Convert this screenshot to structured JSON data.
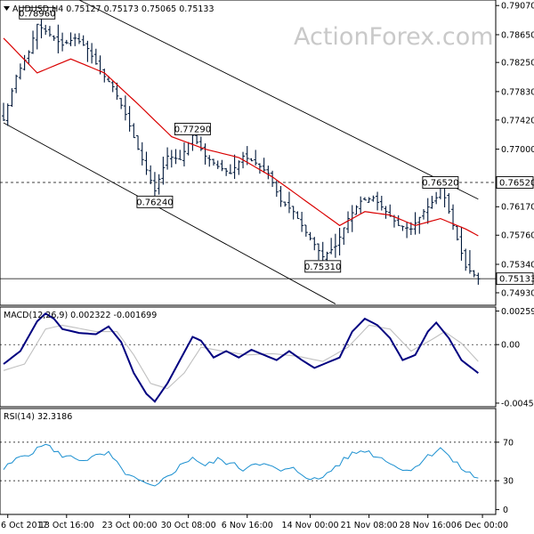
{
  "chart_data": {
    "type": "candlestick",
    "symbol_header": "AUDUSD,H4  0.75127 0.75173 0.75065 0.75133",
    "watermark": "ActionForex.com",
    "price_panel": {
      "ylim": [
        0.7475,
        0.7915
      ],
      "y_ticks": [
        "0.79070",
        "0.78650",
        "0.78250",
        "0.77830",
        "0.77420",
        "0.77000",
        "0.76170",
        "0.75760",
        "0.75340",
        "0.74930"
      ],
      "tagged_levels": [
        {
          "label": "0.76520",
          "value": 0.7652,
          "style": "dashed"
        },
        {
          "label": "0.75133",
          "value": 0.75133,
          "style": "solid"
        }
      ],
      "callouts": [
        {
          "label": "0.78960",
          "bar": 8,
          "value": 0.7896
        },
        {
          "label": "0.77290",
          "bar": 45,
          "value": 0.7729
        },
        {
          "label": "0.76240",
          "bar": 36,
          "value": 0.7624
        },
        {
          "label": "0.75310",
          "bar": 76,
          "value": 0.7531
        },
        {
          "label": "0.76520",
          "bar": 104,
          "value": 0.7652
        }
      ],
      "channel": [
        {
          "from": [
            0,
            0.7738
          ],
          "to": [
            79,
            0.7477
          ]
        },
        {
          "from": [
            18,
            0.7915
          ],
          "to": [
            113,
            0.7628
          ]
        }
      ],
      "ohlc_anchors": [
        [
          0,
          0.7742
        ],
        [
          3,
          0.7805
        ],
        [
          6,
          0.784
        ],
        [
          8,
          0.788
        ],
        [
          11,
          0.7865
        ],
        [
          14,
          0.785
        ],
        [
          17,
          0.786
        ],
        [
          20,
          0.7845
        ],
        [
          23,
          0.7812
        ],
        [
          26,
          0.779
        ],
        [
          29,
          0.775
        ],
        [
          32,
          0.77
        ],
        [
          36,
          0.764
        ],
        [
          39,
          0.769
        ],
        [
          42,
          0.7685
        ],
        [
          45,
          0.772
        ],
        [
          48,
          0.769
        ],
        [
          51,
          0.7675
        ],
        [
          54,
          0.7665
        ],
        [
          57,
          0.769
        ],
        [
          60,
          0.768
        ],
        [
          63,
          0.7665
        ],
        [
          66,
          0.7625
        ],
        [
          69,
          0.761
        ],
        [
          72,
          0.758
        ],
        [
          76,
          0.7545
        ],
        [
          79,
          0.756
        ],
        [
          82,
          0.76
        ],
        [
          85,
          0.7625
        ],
        [
          88,
          0.763
        ],
        [
          91,
          0.761
        ],
        [
          94,
          0.759
        ],
        [
          97,
          0.7585
        ],
        [
          100,
          0.761
        ],
        [
          103,
          0.763
        ],
        [
          104,
          0.765
        ],
        [
          106,
          0.761
        ],
        [
          108,
          0.757
        ],
        [
          110,
          0.753
        ],
        [
          113,
          0.7513
        ]
      ],
      "ma_anchors": [
        [
          0,
          0.786
        ],
        [
          8,
          0.781
        ],
        [
          16,
          0.783
        ],
        [
          24,
          0.781
        ],
        [
          32,
          0.7765
        ],
        [
          40,
          0.7718
        ],
        [
          48,
          0.77
        ],
        [
          56,
          0.7688
        ],
        [
          64,
          0.766
        ],
        [
          72,
          0.7625
        ],
        [
          80,
          0.759
        ],
        [
          86,
          0.761
        ],
        [
          92,
          0.7605
        ],
        [
          98,
          0.759
        ],
        [
          104,
          0.76
        ],
        [
          110,
          0.7585
        ],
        [
          113,
          0.7575
        ]
      ]
    },
    "macd_panel": {
      "label": "MACD(12,26,9) 0.002322 -0.001699",
      "ylim": [
        -0.0048,
        0.0029
      ],
      "y_ticks": [
        "0.002595",
        "0.00",
        "-0.004522"
      ],
      "zero": 0,
      "main_anchors": [
        [
          0,
          -0.0015
        ],
        [
          4,
          -0.0005
        ],
        [
          8,
          0.0018
        ],
        [
          10,
          0.0024
        ],
        [
          12,
          0.002
        ],
        [
          14,
          0.0012
        ],
        [
          18,
          0.0009
        ],
        [
          22,
          0.0008
        ],
        [
          25,
          0.0014
        ],
        [
          28,
          0.0002
        ],
        [
          31,
          -0.0022
        ],
        [
          34,
          -0.0038
        ],
        [
          36,
          -0.0044
        ],
        [
          39,
          -0.003
        ],
        [
          42,
          -0.0012
        ],
        [
          45,
          0.0006
        ],
        [
          47,
          0.0003
        ],
        [
          50,
          -0.001
        ],
        [
          53,
          -0.0005
        ],
        [
          56,
          -0.001
        ],
        [
          59,
          -0.0004
        ],
        [
          62,
          -0.0008
        ],
        [
          65,
          -0.0012
        ],
        [
          68,
          -0.0005
        ],
        [
          71,
          -0.0012
        ],
        [
          74,
          -0.0018
        ],
        [
          77,
          -0.0014
        ],
        [
          80,
          -0.001
        ],
        [
          83,
          0.001
        ],
        [
          86,
          0.002
        ],
        [
          89,
          0.0015
        ],
        [
          92,
          0.0005
        ],
        [
          95,
          -0.0012
        ],
        [
          98,
          -0.0008
        ],
        [
          101,
          0.001
        ],
        [
          103,
          0.0017
        ],
        [
          106,
          0.0005
        ],
        [
          109,
          -0.0012
        ],
        [
          113,
          -0.0022
        ]
      ],
      "signal_anchors": [
        [
          0,
          -0.002
        ],
        [
          5,
          -0.0015
        ],
        [
          10,
          0.0012
        ],
        [
          14,
          0.0015
        ],
        [
          22,
          0.001
        ],
        [
          27,
          0.001
        ],
        [
          31,
          -0.0008
        ],
        [
          35,
          -0.003
        ],
        [
          39,
          -0.0034
        ],
        [
          43,
          -0.0022
        ],
        [
          47,
          -0.0002
        ],
        [
          52,
          -0.0005
        ],
        [
          58,
          -0.0008
        ],
        [
          64,
          -0.0007
        ],
        [
          70,
          -0.0009
        ],
        [
          76,
          -0.0013
        ],
        [
          82,
          -0.0002
        ],
        [
          87,
          0.0015
        ],
        [
          92,
          0.0012
        ],
        [
          97,
          -0.0005
        ],
        [
          102,
          0.0004
        ],
        [
          105,
          0.001
        ],
        [
          109,
          0.0001
        ],
        [
          113,
          -0.0013
        ]
      ]
    },
    "rsi_panel": {
      "label": "RSI(14) 32.3186",
      "ylim": [
        0,
        100
      ],
      "y_ticks": [
        70,
        30,
        0
      ],
      "guides": [
        70,
        30
      ],
      "anchors": [
        [
          0,
          42
        ],
        [
          4,
          55
        ],
        [
          8,
          62
        ],
        [
          10,
          70
        ],
        [
          12,
          60
        ],
        [
          15,
          55
        ],
        [
          19,
          52
        ],
        [
          22,
          55
        ],
        [
          25,
          58
        ],
        [
          28,
          42
        ],
        [
          31,
          32
        ],
        [
          34,
          26
        ],
        [
          36,
          22
        ],
        [
          39,
          35
        ],
        [
          42,
          45
        ],
        [
          45,
          55
        ],
        [
          48,
          45
        ],
        [
          51,
          52
        ],
        [
          54,
          48
        ],
        [
          57,
          42
        ],
        [
          60,
          50
        ],
        [
          63,
          45
        ],
        [
          66,
          40
        ],
        [
          69,
          42
        ],
        [
          72,
          35
        ],
        [
          75,
          30
        ],
        [
          77,
          38
        ],
        [
          80,
          48
        ],
        [
          83,
          58
        ],
        [
          86,
          62
        ],
        [
          89,
          55
        ],
        [
          92,
          50
        ],
        [
          95,
          40
        ],
        [
          98,
          45
        ],
        [
          101,
          55
        ],
        [
          104,
          65
        ],
        [
          107,
          50
        ],
        [
          110,
          40
        ],
        [
          113,
          32
        ]
      ]
    },
    "x_labels": [
      {
        "text": "6 Oct 2017",
        "bar": 1
      },
      {
        "text": "13 Oct 16:00",
        "bar": 15
      },
      {
        "text": "23 Oct 00:00",
        "bar": 30
      },
      {
        "text": "30 Oct 08:00",
        "bar": 44
      },
      {
        "text": "6 Nov 16:00",
        "bar": 58
      },
      {
        "text": "14 Nov 00:00",
        "bar": 73
      },
      {
        "text": "21 Nov 08:00",
        "bar": 87
      },
      {
        "text": "28 Nov 16:00",
        "bar": 101
      },
      {
        "text": "6 Dec 00:00",
        "bar": 114
      }
    ],
    "colors": {
      "candle": "#00183a",
      "ma": "#d90000",
      "macd_main": "#000080",
      "macd_signal": "#c0c0c0",
      "rsi": "#1a8fd0",
      "channel": "#000000",
      "grid": "#000000"
    }
  }
}
